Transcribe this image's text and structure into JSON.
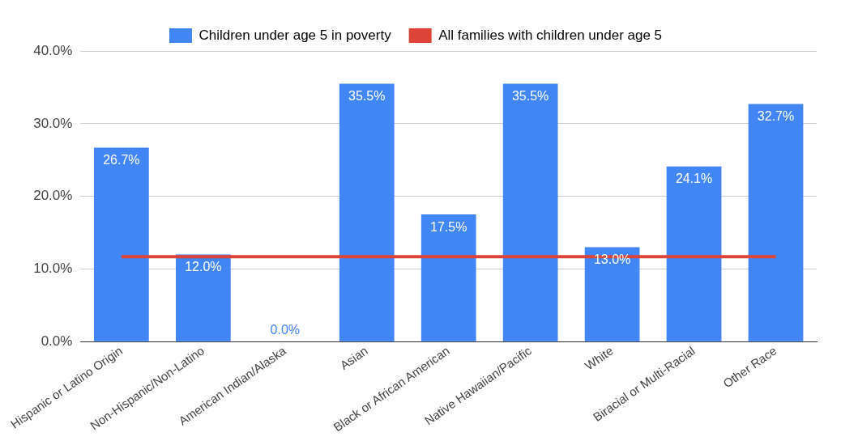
{
  "chart_data": {
    "type": "bar",
    "categories": [
      "Hispanic or Latino Origin",
      "Non-Hispanic/Non-Latino",
      "American Indian/Alaska",
      "Asian",
      "Black or African American",
      "Native Hawaiian/Pacific",
      "White",
      "Biracial or Multi-Racial",
      "Other Race"
    ],
    "series": [
      {
        "name": "Children under age 5 in poverty",
        "color": "#4285f4",
        "values": [
          26.7,
          12.0,
          0.0,
          35.5,
          17.5,
          35.5,
          13.0,
          24.1,
          32.7
        ],
        "value_labels": [
          "26.7%",
          "12.0%",
          "0.0%",
          "35.5%",
          "17.5%",
          "35.5%",
          "13.0%",
          "24.1%",
          "32.7%"
        ]
      },
      {
        "name": "All families with children under age 5",
        "type": "line",
        "color": "#db4437",
        "values": [
          11.7,
          11.7,
          11.7,
          11.7,
          11.7,
          11.7,
          11.7,
          11.7,
          11.7
        ]
      }
    ],
    "ylim": [
      0,
      40
    ],
    "yticks": [
      {
        "value": 0,
        "label": "0.0%"
      },
      {
        "value": 10,
        "label": "10.0%"
      },
      {
        "value": 20,
        "label": "20.0%"
      },
      {
        "value": 30,
        "label": "30.0%"
      },
      {
        "value": 40,
        "label": "40.0%"
      }
    ],
    "grid": "y",
    "legend": "top",
    "marker": "none"
  }
}
